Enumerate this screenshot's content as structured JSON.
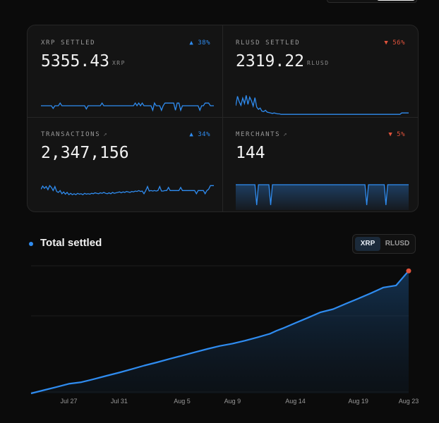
{
  "header": {
    "toggle_options": [
      "",
      ""
    ]
  },
  "stats": [
    {
      "label": "XRP SETTLED",
      "value": "5355.43",
      "unit": "XRP",
      "change": "▲ 38%",
      "direction": "up",
      "has_arrow": false
    },
    {
      "label": "RLUSD SETTLED",
      "value": "2319.22",
      "unit": "RLUSD",
      "change": "▼ 56%",
      "direction": "down",
      "has_arrow": false
    },
    {
      "label": "TRANSACTIONS",
      "value": "2,347,156",
      "unit": "",
      "change": "▲ 34%",
      "direction": "up",
      "has_arrow": true
    },
    {
      "label": "MERCHANTS",
      "value": "144",
      "unit": "",
      "change": "▼ 5%",
      "direction": "down",
      "has_arrow": true
    }
  ],
  "stat_arrow": "↗",
  "chart_section": {
    "title": "Total settled",
    "currency_options": [
      {
        "label": "XRP",
        "active": true
      },
      {
        "label": "RLUSD",
        "active": false
      }
    ]
  },
  "colors": {
    "accent": "#2f8cf0",
    "down": "#e0533c",
    "end_marker": "#e0533c",
    "background": "#0b0b0b",
    "card": "#141414"
  },
  "sparklines": {
    "xrp_settled": [
      50,
      50,
      50,
      50,
      50,
      50,
      50,
      38,
      50,
      50,
      50,
      62,
      50,
      50,
      50,
      50,
      50,
      50,
      50,
      50,
      50,
      50,
      50,
      50,
      50,
      50,
      36,
      50,
      50,
      50,
      50,
      50,
      50,
      50,
      50,
      62,
      50,
      50,
      50,
      50,
      50,
      50,
      50,
      50,
      50,
      50,
      50,
      50,
      50,
      50,
      50,
      50,
      50,
      50,
      62,
      50,
      62,
      50,
      62,
      50,
      50,
      50,
      50,
      50,
      30,
      62,
      50,
      50,
      50,
      30,
      50,
      62,
      62,
      62,
      62,
      62,
      62,
      30,
      62,
      62,
      30,
      50,
      50,
      50,
      50,
      50,
      50,
      50,
      50,
      50,
      50,
      30,
      50,
      50,
      62,
      62,
      62,
      50,
      50,
      50
    ],
    "rlusd_settled": [
      50,
      92,
      68,
      52,
      84,
      60,
      96,
      56,
      88,
      72,
      48,
      86,
      44,
      34,
      40,
      26,
      24,
      30,
      22,
      20,
      18,
      16,
      18,
      16,
      14,
      14,
      12,
      12,
      12,
      12,
      12,
      12,
      12,
      12,
      12,
      12,
      12,
      12,
      12,
      12,
      12,
      12,
      12,
      12,
      12,
      12,
      12,
      12,
      12,
      12,
      12,
      12,
      12,
      12,
      12,
      12,
      12,
      12,
      12,
      12,
      12,
      12,
      12,
      12,
      12,
      12,
      12,
      12,
      12,
      12,
      12,
      12,
      12,
      12,
      12,
      12,
      12,
      12,
      12,
      12,
      12,
      12,
      12,
      12,
      12,
      12,
      12,
      12,
      12,
      12,
      12,
      12,
      12,
      12,
      12,
      18,
      18,
      18,
      18,
      18
    ],
    "transactions": [
      80,
      94,
      84,
      92,
      78,
      96,
      88,
      74,
      92,
      70,
      66,
      74,
      60,
      68,
      58,
      66,
      56,
      62,
      56,
      60,
      56,
      62,
      58,
      60,
      56,
      62,
      58,
      60,
      58,
      62,
      60,
      64,
      62,
      60,
      64,
      62,
      66,
      62,
      60,
      64,
      60,
      66,
      62,
      64,
      66,
      68,
      64,
      68,
      66,
      70,
      68,
      66,
      70,
      68,
      72,
      70,
      74,
      70,
      72,
      60,
      74,
      92,
      72,
      74,
      72,
      74,
      72,
      74,
      92,
      72,
      72,
      74,
      74,
      88,
      74,
      74,
      74,
      74,
      74,
      74,
      88,
      74,
      74,
      74,
      74,
      74,
      74,
      74,
      74,
      60,
      74,
      74,
      74,
      74,
      60,
      74,
      80,
      96,
      96,
      96
    ],
    "merchants": [
      100,
      100,
      100,
      100,
      100,
      100,
      100,
      100,
      100,
      100,
      100,
      100,
      10,
      100,
      100,
      100,
      100,
      100,
      100,
      100,
      10,
      100,
      100,
      100,
      100,
      100,
      100,
      100,
      100,
      100,
      100,
      100,
      100,
      100,
      100,
      100,
      100,
      100,
      100,
      100,
      100,
      100,
      100,
      100,
      100,
      100,
      100,
      100,
      100,
      100,
      100,
      100,
      100,
      100,
      100,
      100,
      100,
      100,
      100,
      100,
      100,
      100,
      100,
      100,
      100,
      100,
      100,
      100,
      100,
      100,
      100,
      100,
      100,
      100,
      100,
      10,
      100,
      100,
      100,
      100,
      100,
      100,
      100,
      100,
      100,
      100,
      10,
      100,
      100,
      100,
      100,
      100,
      100,
      100,
      100,
      100,
      100,
      100,
      100,
      100
    ]
  },
  "chart_data": {
    "type": "area",
    "xlim": [
      "Jul 24",
      "Aug 23"
    ],
    "x_ticks": [
      "Jul 27",
      "Jul 31",
      "Aug 5",
      "Aug 9",
      "Aug 14",
      "Aug 19",
      "Aug 23"
    ],
    "x_tick_days": [
      3,
      7,
      12,
      16,
      21,
      26,
      30
    ],
    "ylim": [
      0,
      100
    ],
    "grid": true,
    "series": [
      {
        "values": [
          [
            0,
            0
          ],
          [
            1,
            2.5
          ],
          [
            2,
            4.9
          ],
          [
            3,
            7.5
          ],
          [
            4,
            8.8
          ],
          [
            5,
            11.2
          ],
          [
            6,
            13.8
          ],
          [
            7,
            16.3
          ],
          [
            8,
            19.0
          ],
          [
            9,
            21.8
          ],
          [
            10,
            24.3
          ],
          [
            11,
            27.0
          ],
          [
            12,
            29.6
          ],
          [
            13,
            32.2
          ],
          [
            14,
            34.8
          ],
          [
            15,
            37.2
          ],
          [
            16,
            39.0
          ],
          [
            17,
            41.3
          ],
          [
            18,
            44.0
          ],
          [
            19,
            46.8
          ],
          [
            19.5,
            49.1
          ],
          [
            20,
            51.0
          ],
          [
            21,
            55.2
          ],
          [
            22,
            59.3
          ],
          [
            23,
            63.6
          ],
          [
            24,
            66.0
          ],
          [
            25,
            70.2
          ],
          [
            26,
            74.3
          ],
          [
            27,
            78.5
          ],
          [
            28,
            83.0
          ],
          [
            29,
            84.6
          ],
          [
            30,
            96.0
          ]
        ]
      }
    ]
  }
}
